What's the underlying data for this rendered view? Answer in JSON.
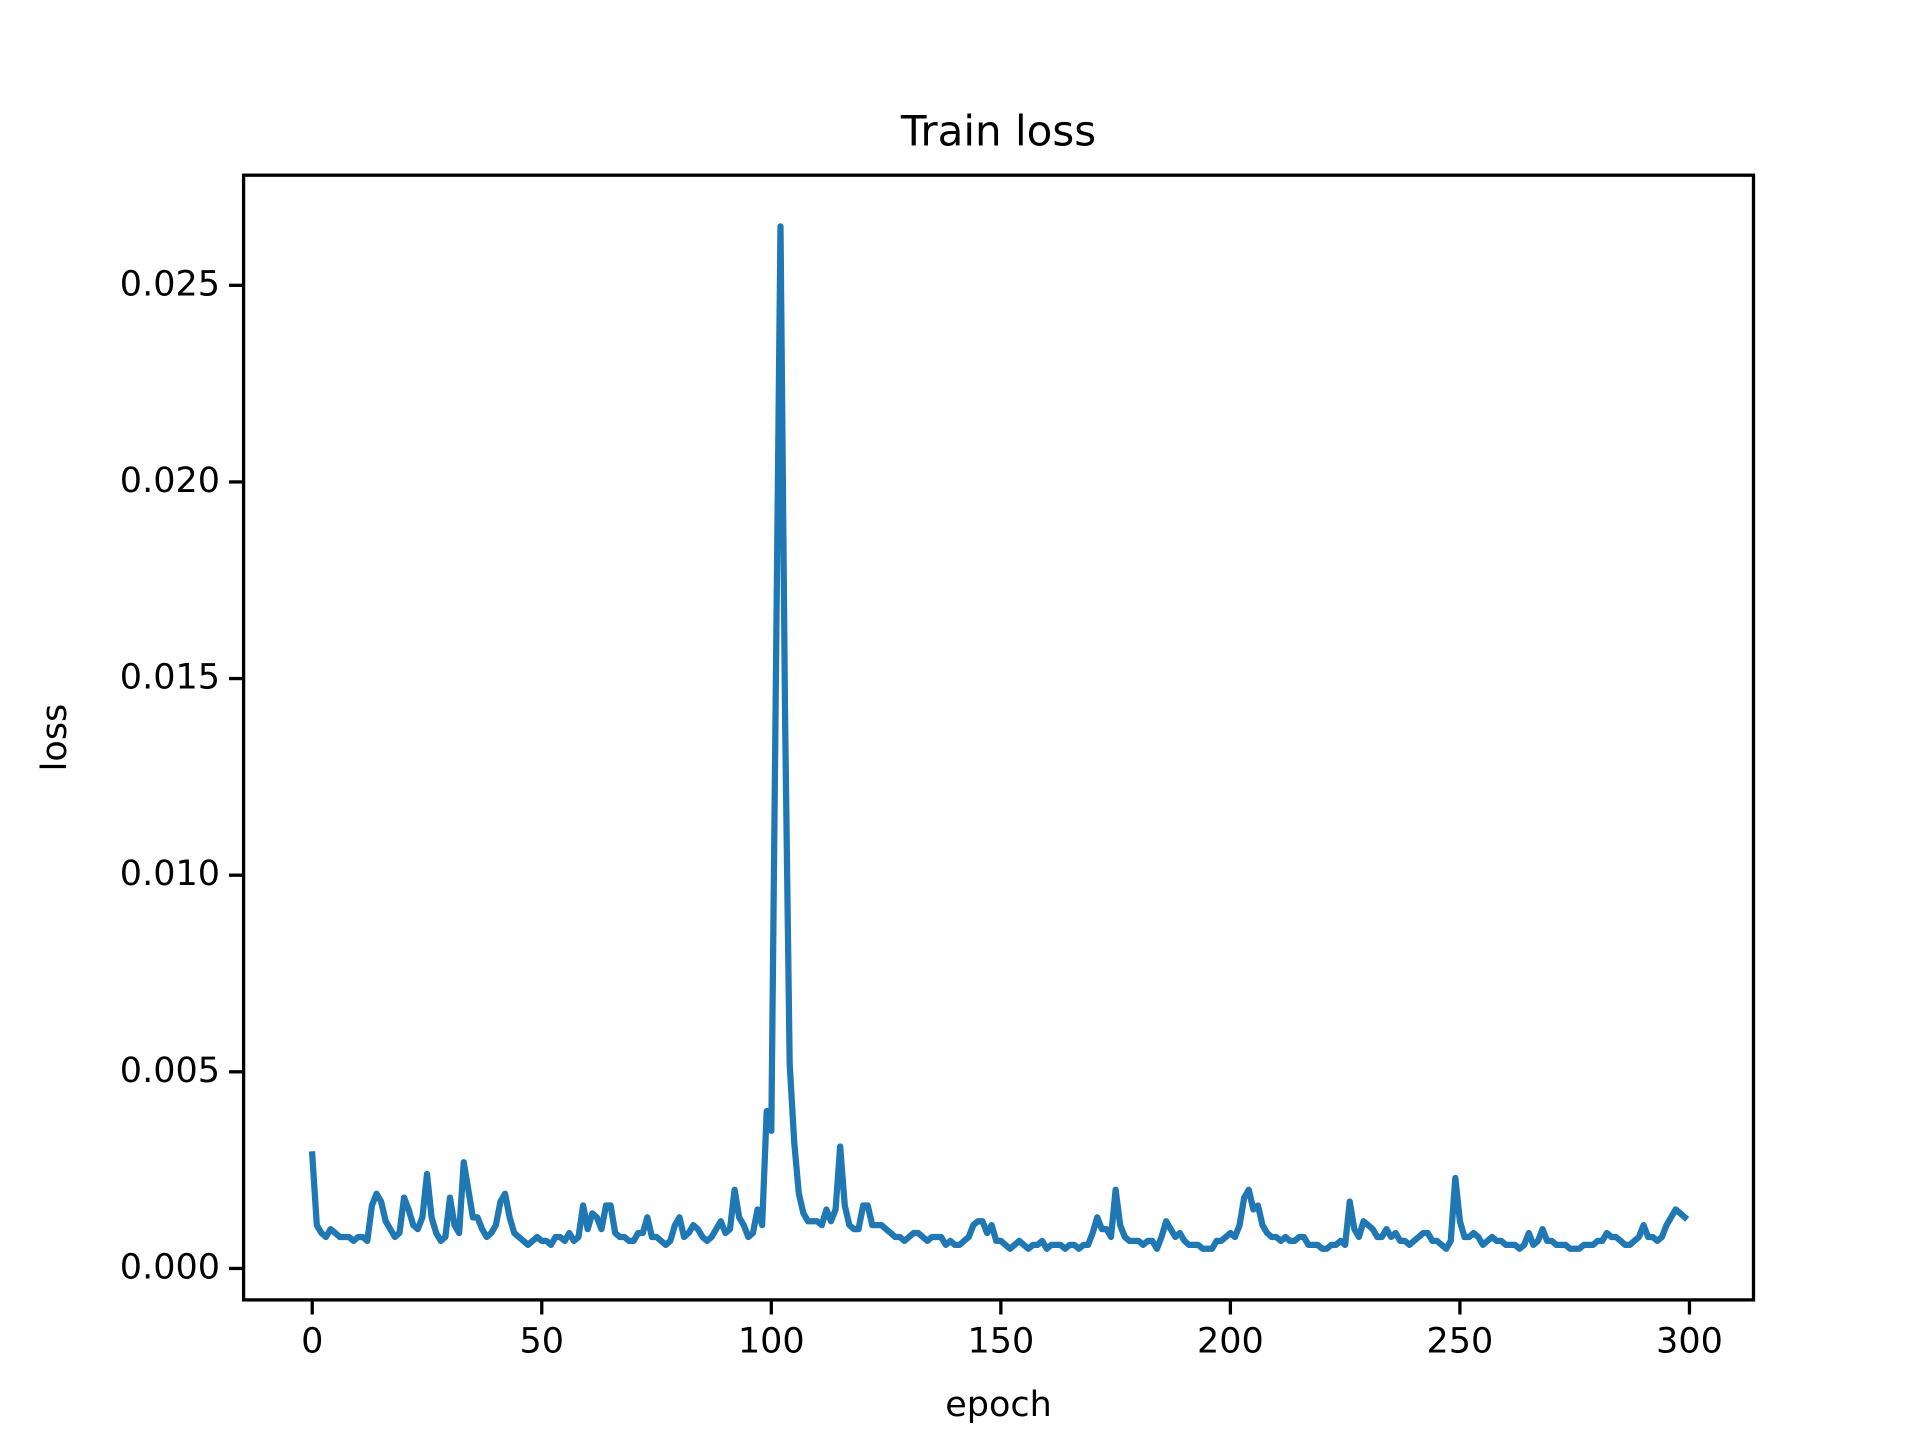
{
  "chart_data": {
    "type": "line",
    "title": "Train loss",
    "x_label": "epoch",
    "y_label": "loss",
    "x": [
      0,
      1,
      2,
      3,
      4,
      5,
      6,
      7,
      8,
      9,
      10,
      11,
      12,
      13,
      14,
      15,
      16,
      17,
      18,
      19,
      20,
      21,
      22,
      23,
      24,
      25,
      26,
      27,
      28,
      29,
      30,
      31,
      32,
      33,
      34,
      35,
      36,
      37,
      38,
      39,
      40,
      41,
      42,
      43,
      44,
      45,
      46,
      47,
      48,
      49,
      50,
      51,
      52,
      53,
      54,
      55,
      56,
      57,
      58,
      59,
      60,
      61,
      62,
      63,
      64,
      65,
      66,
      67,
      68,
      69,
      70,
      71,
      72,
      73,
      74,
      75,
      76,
      77,
      78,
      79,
      80,
      81,
      82,
      83,
      84,
      85,
      86,
      87,
      88,
      89,
      90,
      91,
      92,
      93,
      94,
      95,
      96,
      97,
      98,
      99,
      100,
      101,
      102,
      103,
      104,
      105,
      106,
      107,
      108,
      109,
      110,
      111,
      112,
      113,
      114,
      115,
      116,
      117,
      118,
      119,
      120,
      121,
      122,
      123,
      124,
      125,
      126,
      127,
      128,
      129,
      130,
      131,
      132,
      133,
      134,
      135,
      136,
      137,
      138,
      139,
      140,
      141,
      142,
      143,
      144,
      145,
      146,
      147,
      148,
      149,
      150,
      151,
      152,
      153,
      154,
      155,
      156,
      157,
      158,
      159,
      160,
      161,
      162,
      163,
      164,
      165,
      166,
      167,
      168,
      169,
      170,
      171,
      172,
      173,
      174,
      175,
      176,
      177,
      178,
      179,
      180,
      181,
      182,
      183,
      184,
      185,
      186,
      187,
      188,
      189,
      190,
      191,
      192,
      193,
      194,
      195,
      196,
      197,
      198,
      199,
      200,
      201,
      202,
      203,
      204,
      205,
      206,
      207,
      208,
      209,
      210,
      211,
      212,
      213,
      214,
      215,
      216,
      217,
      218,
      219,
      220,
      221,
      222,
      223,
      224,
      225,
      226,
      227,
      228,
      229,
      230,
      231,
      232,
      233,
      234,
      235,
      236,
      237,
      238,
      239,
      240,
      241,
      242,
      243,
      244,
      245,
      246,
      247,
      248,
      249,
      250,
      251,
      252,
      253,
      254,
      255,
      256,
      257,
      258,
      259,
      260,
      261,
      262,
      263,
      264,
      265,
      266,
      267,
      268,
      269,
      270,
      271,
      272,
      273,
      274,
      275,
      276,
      277,
      278,
      279,
      280,
      281,
      282,
      283,
      284,
      285,
      286,
      287,
      288,
      289,
      290,
      291,
      292,
      293,
      294,
      295,
      296,
      297,
      298,
      299
    ],
    "series": [
      {
        "color": "#1f77b4",
        "values": [
          0.0029,
          0.0011,
          0.0009,
          0.0008,
          0.001,
          0.0009,
          0.0008,
          0.0008,
          0.0008,
          0.0007,
          0.0008,
          0.0008,
          0.0007,
          0.0016,
          0.0019,
          0.0017,
          0.0012,
          0.001,
          0.0008,
          0.0009,
          0.0018,
          0.0015,
          0.0011,
          0.001,
          0.0013,
          0.0024,
          0.0013,
          0.0009,
          0.0007,
          0.0008,
          0.0018,
          0.0011,
          0.0009,
          0.0027,
          0.002,
          0.0013,
          0.0013,
          0.001,
          0.0008,
          0.0009,
          0.0011,
          0.0017,
          0.0019,
          0.0013,
          0.0009,
          0.0008,
          0.0007,
          0.0006,
          0.0007,
          0.0008,
          0.0007,
          0.0007,
          0.0006,
          0.0008,
          0.0008,
          0.0007,
          0.0009,
          0.0007,
          0.0008,
          0.0016,
          0.001,
          0.0014,
          0.0013,
          0.001,
          0.0016,
          0.0016,
          0.0009,
          0.0008,
          0.0008,
          0.0007,
          0.0007,
          0.0009,
          0.0009,
          0.0013,
          0.0008,
          0.0008,
          0.0007,
          0.0006,
          0.0007,
          0.0011,
          0.0013,
          0.0008,
          0.0009,
          0.0011,
          0.001,
          0.0008,
          0.0007,
          0.0008,
          0.001,
          0.0012,
          0.0009,
          0.001,
          0.002,
          0.0013,
          0.0011,
          0.0008,
          0.0009,
          0.0015,
          0.0011,
          0.004,
          0.0035,
          0.015,
          0.0265,
          0.014,
          0.0052,
          0.0032,
          0.0019,
          0.0014,
          0.0012,
          0.0012,
          0.0012,
          0.0011,
          0.0015,
          0.0012,
          0.0015,
          0.0031,
          0.0016,
          0.0011,
          0.001,
          0.001,
          0.0016,
          0.0016,
          0.0011,
          0.0011,
          0.0011,
          0.001,
          0.0009,
          0.0008,
          0.0008,
          0.0007,
          0.0008,
          0.0009,
          0.0009,
          0.0008,
          0.0007,
          0.0008,
          0.0008,
          0.0008,
          0.0006,
          0.0007,
          0.0006,
          0.0006,
          0.0007,
          0.0008,
          0.0011,
          0.0012,
          0.0012,
          0.0009,
          0.0011,
          0.0007,
          0.0007,
          0.0006,
          0.0005,
          0.0006,
          0.0007,
          0.0006,
          0.0005,
          0.0006,
          0.0006,
          0.0007,
          0.0005,
          0.0006,
          0.0006,
          0.0006,
          0.0005,
          0.0006,
          0.0006,
          0.0005,
          0.0006,
          0.0006,
          0.0009,
          0.0013,
          0.001,
          0.001,
          0.0008,
          0.002,
          0.0011,
          0.0008,
          0.0007,
          0.0007,
          0.0007,
          0.0006,
          0.0007,
          0.0007,
          0.0005,
          0.0008,
          0.0012,
          0.001,
          0.0008,
          0.0009,
          0.0007,
          0.0006,
          0.0006,
          0.0006,
          0.0005,
          0.0005,
          0.0005,
          0.0007,
          0.0007,
          0.0008,
          0.0009,
          0.0008,
          0.0011,
          0.0018,
          0.002,
          0.0015,
          0.0016,
          0.0011,
          0.0009,
          0.0008,
          0.0008,
          0.0007,
          0.0008,
          0.0007,
          0.0007,
          0.0008,
          0.0008,
          0.0006,
          0.0006,
          0.0006,
          0.0005,
          0.0005,
          0.0006,
          0.0006,
          0.0007,
          0.0006,
          0.0017,
          0.001,
          0.0008,
          0.0012,
          0.0011,
          0.001,
          0.0008,
          0.0008,
          0.001,
          0.0008,
          0.0009,
          0.0007,
          0.0007,
          0.0006,
          0.0007,
          0.0008,
          0.0009,
          0.0009,
          0.0007,
          0.0007,
          0.0006,
          0.0005,
          0.0007,
          0.0023,
          0.0012,
          0.0008,
          0.0008,
          0.0009,
          0.0008,
          0.0006,
          0.0007,
          0.0008,
          0.0007,
          0.0007,
          0.0006,
          0.0006,
          0.0006,
          0.0005,
          0.0006,
          0.0009,
          0.0006,
          0.0007,
          0.001,
          0.0007,
          0.0007,
          0.0006,
          0.0006,
          0.0006,
          0.0005,
          0.0005,
          0.0005,
          0.0006,
          0.0006,
          0.0006,
          0.0007,
          0.0007,
          0.0009,
          0.0008,
          0.0008,
          0.0007,
          0.0006,
          0.0006,
          0.0007,
          0.0008,
          0.0011,
          0.0008,
          0.0008,
          0.0007,
          0.0008,
          0.0011,
          0.0013,
          0.0015,
          0.0014,
          0.0013
        ]
      }
    ],
    "xlim": [
      -14.95,
      313.95
    ],
    "ylim": [
      -0.0008,
      0.0278
    ],
    "xticks": [
      0,
      50,
      100,
      150,
      200,
      250,
      300
    ],
    "yticks": [
      {
        "value": 0,
        "label": "0.000"
      },
      {
        "value": 0.005,
        "label": "0.005"
      },
      {
        "value": 0.01,
        "label": "0.010"
      },
      {
        "value": 0.015,
        "label": "0.015"
      },
      {
        "value": 0.02,
        "label": "0.020"
      },
      {
        "value": 0.025,
        "label": "0.025"
      }
    ],
    "grid": false
  }
}
